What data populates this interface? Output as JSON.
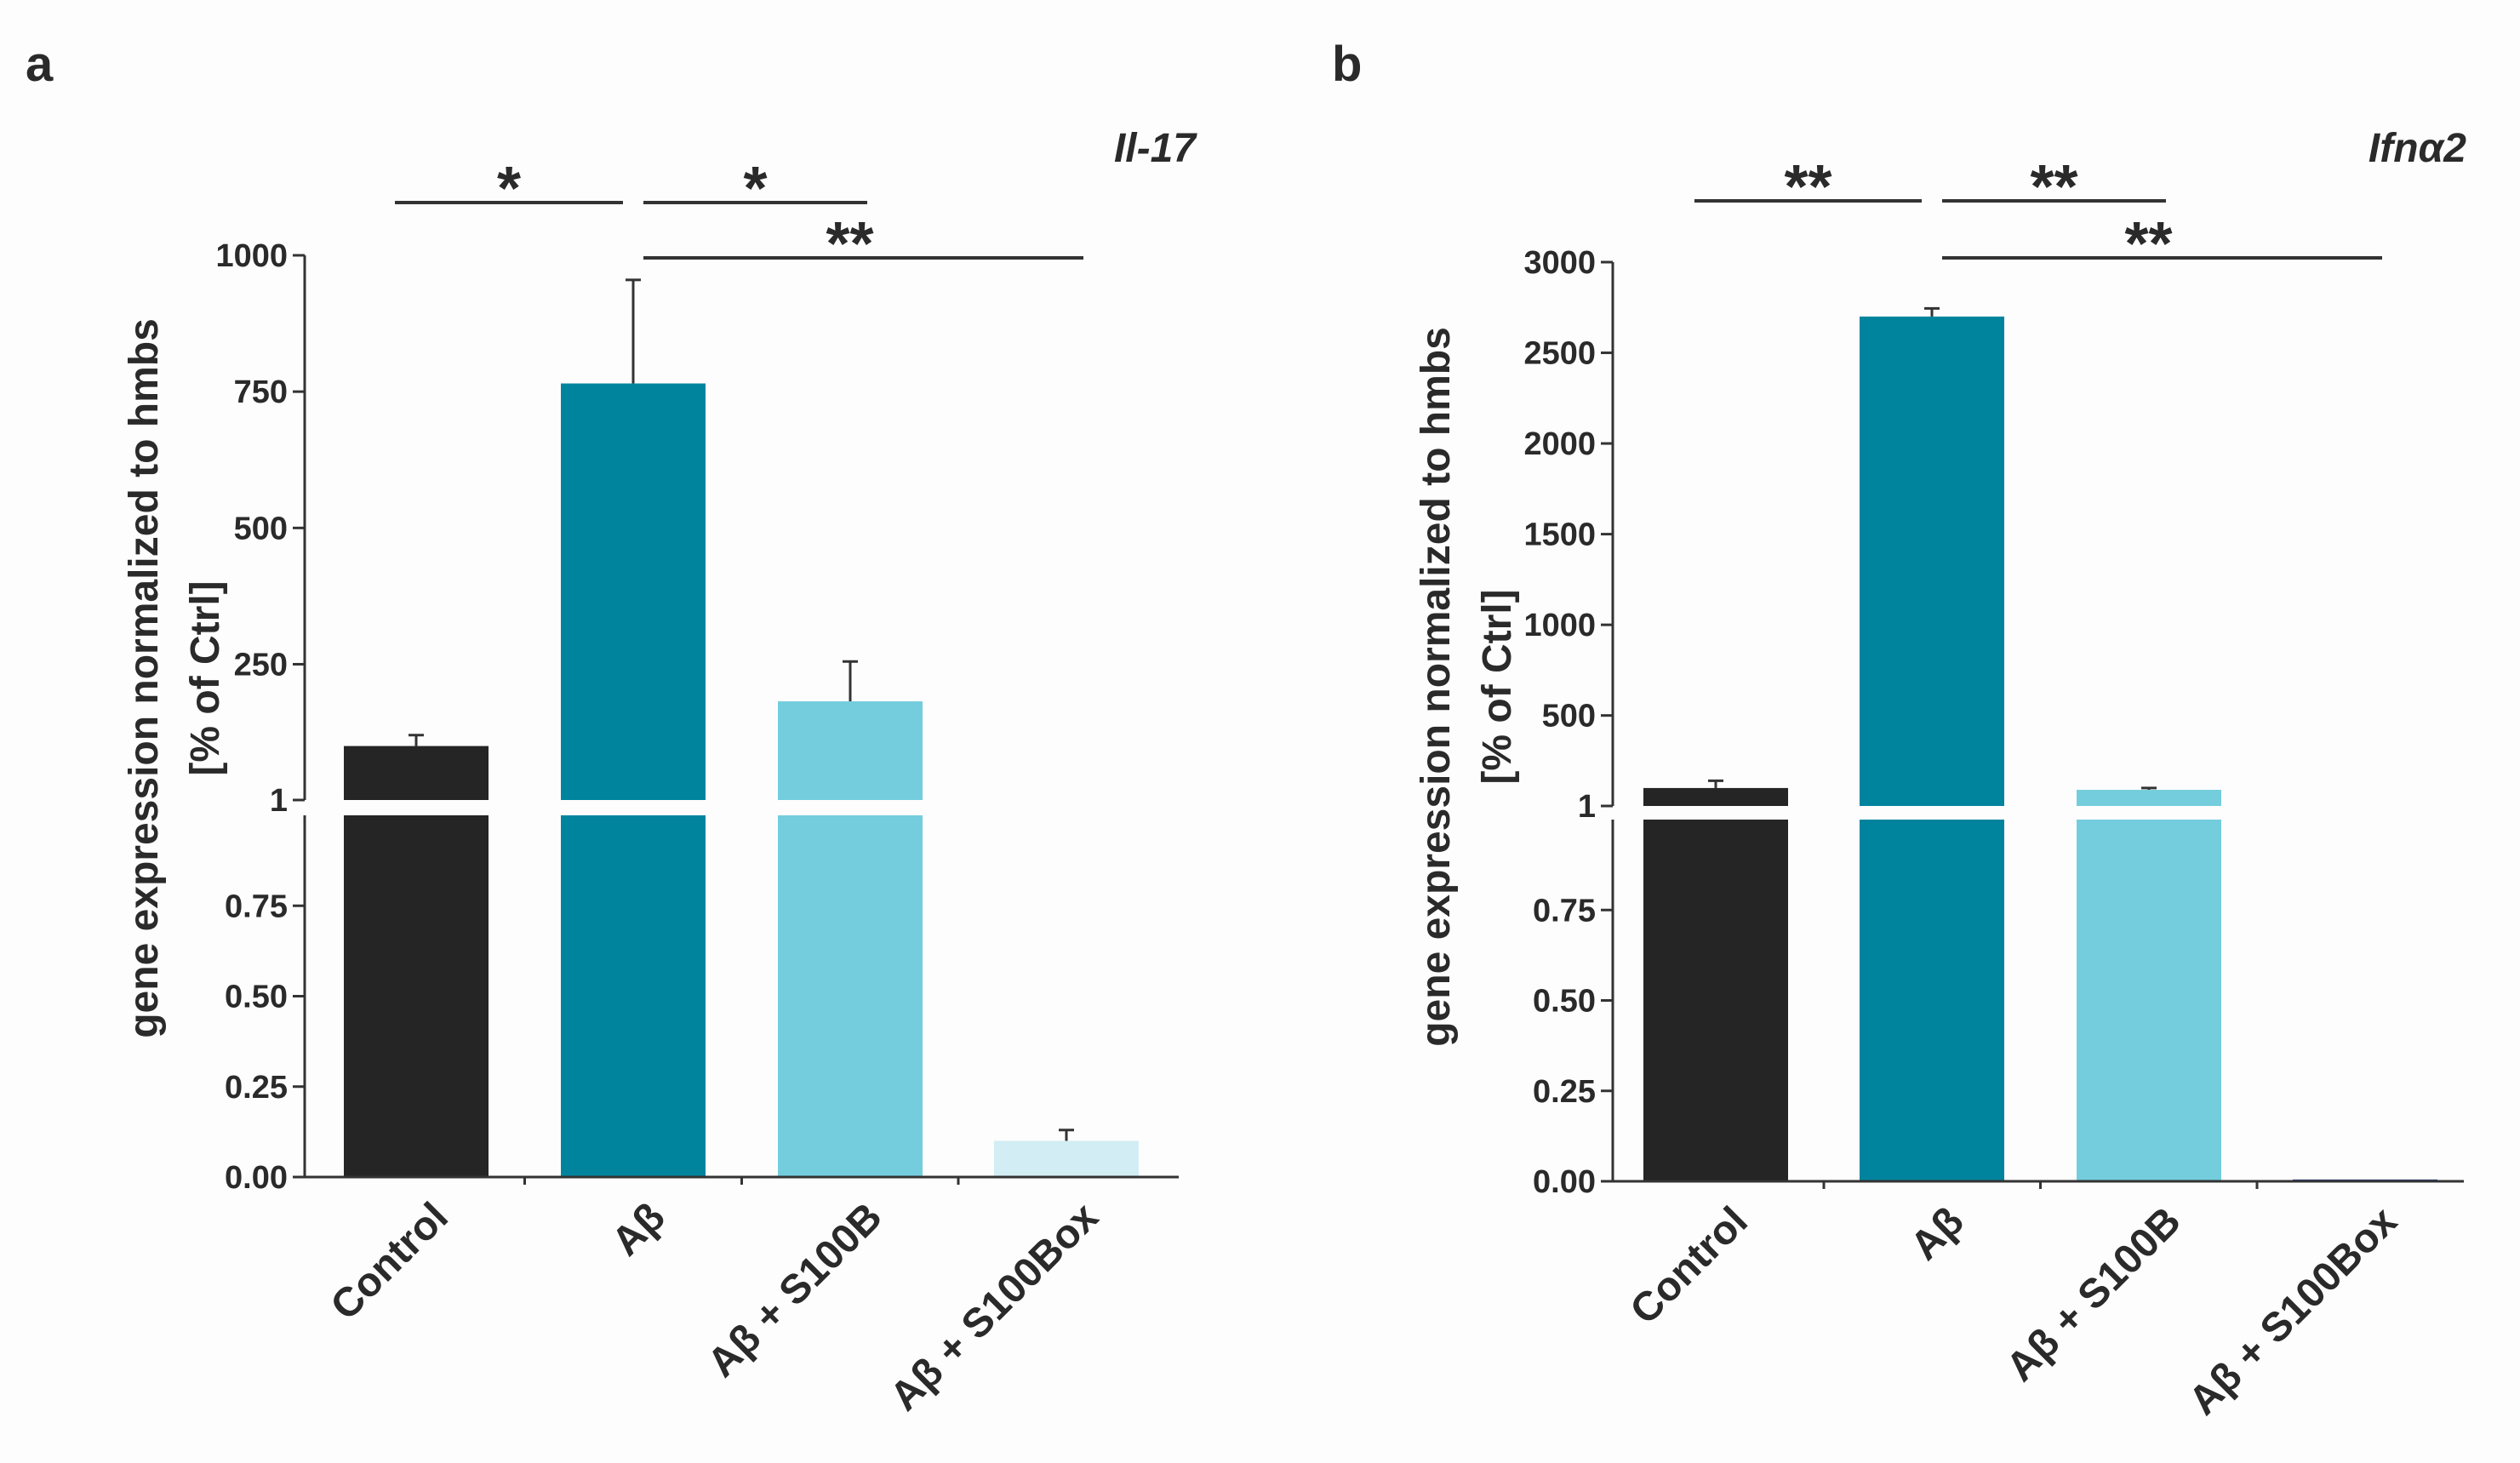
{
  "chart_data": [
    {
      "type": "bar",
      "panel_label": "a",
      "title": "Il-17",
      "ylabel": [
        "gene expression normalized to hmbs",
        "[% of Ctrl]"
      ],
      "categories": [
        "Control",
        "Aβ",
        "Aβ + S100B",
        "Aβ + S100Box"
      ],
      "values": [
        100,
        765,
        182,
        0.1
      ],
      "errors": [
        20,
        190,
        73,
        0.03
      ],
      "colors": [
        "#252525",
        "#00849e",
        "#74cddd",
        "#d2edf3"
      ],
      "y_axis_split": {
        "lower": {
          "ylim": [
            0,
            1
          ],
          "ticks": [
            "0.00",
            "0.25",
            "0.50",
            "0.75"
          ]
        },
        "upper": {
          "ylim": [
            1,
            1000
          ],
          "ticks": [
            "1",
            "250",
            "500",
            "750",
            "1000"
          ]
        }
      },
      "significance": [
        {
          "from": "Control",
          "to": "Aβ",
          "label": "*"
        },
        {
          "from": "Aβ",
          "to": "Aβ + S100B",
          "label": "*"
        },
        {
          "from": "Aβ",
          "to": "Aβ + S100Box",
          "label": "**"
        }
      ],
      "grid": false
    },
    {
      "type": "bar",
      "panel_label": "b",
      "title": "Ifnα2",
      "ylabel": [
        "gene expression normalized to hmbs",
        "[% of Ctrl]"
      ],
      "categories": [
        "Control",
        "Aβ",
        "Aβ + S100B",
        "Aβ + S100Box"
      ],
      "values": [
        100,
        2700,
        90,
        0.005
      ],
      "errors": [
        40,
        45,
        10,
        0
      ],
      "colors": [
        "#252525",
        "#00849e",
        "#74cddd",
        "#2a3d8f"
      ],
      "y_axis_split": {
        "lower": {
          "ylim": [
            0,
            1
          ],
          "ticks": [
            "0.00",
            "0.25",
            "0.50",
            "0.75"
          ]
        },
        "upper": {
          "ylim": [
            1,
            3000
          ],
          "ticks": [
            "1",
            "500",
            "1000",
            "1500",
            "2000",
            "2500",
            "3000"
          ]
        }
      },
      "significance": [
        {
          "from": "Control",
          "to": "Aβ",
          "label": "**"
        },
        {
          "from": "Aβ",
          "to": "Aβ + S100B",
          "label": "**"
        },
        {
          "from": "Aβ",
          "to": "Aβ + S100Box",
          "label": "**"
        }
      ],
      "grid": false
    }
  ]
}
